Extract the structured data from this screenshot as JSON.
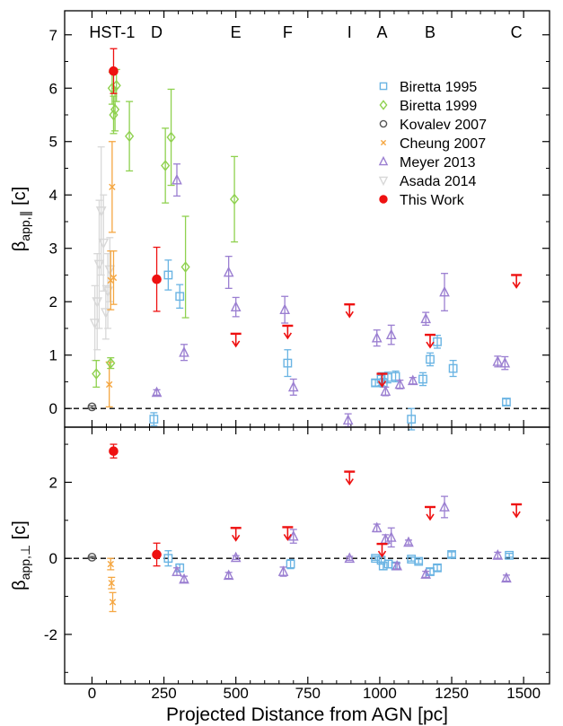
{
  "chart_data": {
    "type": "scatter",
    "xlabel": "Projected Distance from AGN [pc]",
    "xlim": [
      -95,
      1590
    ],
    "xticks": [
      0,
      250,
      500,
      750,
      1000,
      1250,
      1500
    ],
    "xtick_labels": [
      "0",
      "250",
      "500",
      "750",
      "1000",
      "1250",
      "1500"
    ],
    "knots": [
      {
        "label": "HST-1",
        "x": 70
      },
      {
        "label": "D",
        "x": 225
      },
      {
        "label": "E",
        "x": 500
      },
      {
        "label": "F",
        "x": 680
      },
      {
        "label": "I",
        "x": 895
      },
      {
        "label": "A",
        "x": 1008
      },
      {
        "label": "B",
        "x": 1175
      },
      {
        "label": "C",
        "x": 1475
      }
    ],
    "legend": {
      "placement": "top-right",
      "entries": [
        {
          "label": "Biretta 1995",
          "series": "Biretta 1995"
        },
        {
          "label": "Biretta 1999",
          "series": "Biretta 1999"
        },
        {
          "label": "Kovalev 2007",
          "series": "Kovalev 2007"
        },
        {
          "label": "Cheung 2007",
          "series": "Cheung 2007"
        },
        {
          "label": "Meyer 2013",
          "series": "Meyer 2013"
        },
        {
          "label": "Asada 2014",
          "series": "Asada 2014"
        },
        {
          "label": "This Work",
          "series": "This Work"
        }
      ]
    },
    "panels": [
      {
        "ylabel": "β",
        "ylabel_sub": "app,∥",
        "ylabel_unit": "[c]",
        "ylim": [
          -0.35,
          7.45
        ],
        "yticks": [
          0,
          1,
          2,
          3,
          4,
          5,
          6,
          7
        ],
        "ytick_labels": [
          "0",
          "1",
          "2",
          "3",
          "4",
          "5",
          "6",
          "7"
        ],
        "reference_line": 0,
        "series": [
          {
            "name": "Biretta 1995",
            "marker": "square",
            "color": "#6ab4e3",
            "points": [
              [
                215,
                -0.2,
                0.12
              ],
              [
                265,
                2.5,
                0.28
              ],
              [
                305,
                2.1,
                0.22
              ],
              [
                680,
                0.85,
                0.25
              ],
              [
                985,
                0.48,
                0.06
              ],
              [
                1005,
                0.55,
                0.12
              ],
              [
                1012,
                0.48,
                0.08
              ],
              [
                1028,
                0.58,
                0.1
              ],
              [
                1055,
                0.6,
                0.1
              ],
              [
                1110,
                -0.2,
                0.2
              ],
              [
                1150,
                0.55,
                0.12
              ],
              [
                1175,
                0.92,
                0.12
              ],
              [
                1200,
                1.25,
                0.12
              ],
              [
                1255,
                0.75,
                0.15
              ],
              [
                1440,
                0.12,
                0.06
              ]
            ]
          },
          {
            "name": "Biretta 1999",
            "marker": "diamond",
            "color": "#8fd14f",
            "points": [
              [
                15,
                0.65,
                0.25
              ],
              [
                65,
                0.85,
                0.1
              ],
              [
                70,
                6.0,
                0.3
              ],
              [
                75,
                5.5,
                0.35
              ],
              [
                80,
                5.6,
                0.4
              ],
              [
                85,
                6.05,
                0.3
              ],
              [
                130,
                5.1,
                0.65
              ],
              [
                255,
                4.55,
                0.7
              ],
              [
                275,
                5.08,
                0.9
              ],
              [
                325,
                2.65,
                0.95
              ],
              [
                495,
                3.92,
                0.8
              ]
            ]
          },
          {
            "name": "Kovalev 2007",
            "marker": "circle-open",
            "color": "#555555",
            "points": [
              [
                0,
                0.03,
                0.02
              ]
            ]
          },
          {
            "name": "Cheung 2007",
            "marker": "x",
            "color": "#f5a742",
            "points": [
              [
                60,
                0.45,
                0.42
              ],
              [
                65,
                2.4,
                0.55
              ],
              [
                70,
                4.15,
                0.85
              ],
              [
                75,
                2.45,
                0.5
              ]
            ]
          },
          {
            "name": "Meyer 2013",
            "marker": "triangle-up",
            "color": "#9b7fd1",
            "points": [
              [
                225,
                0.3,
                0.05
              ],
              [
                295,
                4.28,
                0.3
              ],
              [
                320,
                1.05,
                0.15
              ],
              [
                475,
                2.55,
                0.3
              ],
              [
                500,
                1.9,
                0.18
              ],
              [
                670,
                1.85,
                0.25
              ],
              [
                700,
                0.4,
                0.15
              ],
              [
                890,
                -0.22,
                0.12
              ],
              [
                990,
                1.32,
                0.15
              ],
              [
                1020,
                0.32,
                0.08
              ],
              [
                1040,
                1.38,
                0.18
              ],
              [
                1070,
                0.45,
                0.08
              ],
              [
                1115,
                0.52,
                0.06
              ],
              [
                1160,
                1.68,
                0.12
              ],
              [
                1225,
                2.18,
                0.35
              ],
              [
                1410,
                0.88,
                0.1
              ],
              [
                1435,
                0.85,
                0.12
              ]
            ]
          },
          {
            "name": "Asada 2014",
            "marker": "triangle-down",
            "color": "#d8d8d8",
            "points": [
              [
                10,
                1.6,
                0.7
              ],
              [
                18,
                2.0,
                0.9
              ],
              [
                25,
                2.7,
                1.2
              ],
              [
                32,
                3.7,
                1.2
              ],
              [
                40,
                3.1,
                0.9
              ],
              [
                48,
                1.8,
                0.5
              ],
              [
                55,
                2.2,
                0.7
              ],
              [
                62,
                2.6,
                0.6
              ]
            ]
          },
          {
            "name": "This Work",
            "marker": "circle-filled",
            "color": "#ee1111",
            "points": [
              [
                75,
                6.32,
                0.42
              ],
              [
                225,
                2.42,
                0.6
              ]
            ]
          },
          {
            "name": "This Work upper limits",
            "marker": "upper-limit",
            "color": "#ee1111",
            "points": [
              [
                500,
                1.4
              ],
              [
                680,
                1.55
              ],
              [
                895,
                1.95
              ],
              [
                1008,
                0.65
              ],
              [
                1175,
                1.38
              ],
              [
                1475,
                2.5
              ]
            ]
          }
        ]
      },
      {
        "ylabel": "β",
        "ylabel_sub": "app,⊥",
        "ylabel_unit": "[c]",
        "ylim": [
          -3.3,
          3.45
        ],
        "yticks": [
          -2,
          0,
          2
        ],
        "ytick_labels": [
          "-2",
          "0",
          "2"
        ],
        "reference_line": 0,
        "series": [
          {
            "name": "Biretta 1995",
            "marker": "square",
            "color": "#6ab4e3",
            "points": [
              [
                265,
                0.0,
                0.2
              ],
              [
                305,
                -0.25,
                0.1
              ],
              [
                690,
                -0.15,
                0.12
              ],
              [
                985,
                0.0,
                0.05
              ],
              [
                1005,
                -0.05,
                0.1
              ],
              [
                1012,
                -0.2,
                0.1
              ],
              [
                1030,
                -0.15,
                0.1
              ],
              [
                1055,
                -0.2,
                0.08
              ],
              [
                1110,
                -0.02,
                0.05
              ],
              [
                1135,
                -0.08,
                0.06
              ],
              [
                1175,
                -0.35,
                0.08
              ],
              [
                1200,
                -0.25,
                0.08
              ],
              [
                1250,
                0.1,
                0.07
              ],
              [
                1450,
                0.08,
                0.05
              ]
            ]
          },
          {
            "name": "Kovalev 2007",
            "marker": "circle-open",
            "color": "#555555",
            "points": [
              [
                0,
                0.03,
                0.02
              ]
            ]
          },
          {
            "name": "Cheung 2007",
            "marker": "x",
            "color": "#f5a742",
            "points": [
              [
                65,
                -0.15,
                0.15
              ],
              [
                68,
                -0.65,
                0.15
              ],
              [
                72,
                -1.15,
                0.25
              ]
            ]
          },
          {
            "name": "Meyer 2013",
            "marker": "triangle-up",
            "color": "#9b7fd1",
            "points": [
              [
                295,
                -0.35,
                0.1
              ],
              [
                320,
                -0.55,
                0.08
              ],
              [
                475,
                -0.45,
                0.08
              ],
              [
                500,
                0.02,
                0.05
              ],
              [
                665,
                -0.35,
                0.12
              ],
              [
                700,
                0.58,
                0.18
              ],
              [
                895,
                0.0,
                0.05
              ],
              [
                990,
                0.8,
                0.1
              ],
              [
                1020,
                0.5,
                0.12
              ],
              [
                1040,
                0.55,
                0.25
              ],
              [
                1060,
                -0.2,
                0.08
              ],
              [
                1100,
                0.42,
                0.06
              ],
              [
                1160,
                -0.42,
                0.08
              ],
              [
                1225,
                1.35,
                0.28
              ],
              [
                1410,
                0.08,
                0.08
              ],
              [
                1440,
                -0.52,
                0.08
              ]
            ]
          },
          {
            "name": "This Work",
            "marker": "circle-filled",
            "color": "#ee1111",
            "points": [
              [
                75,
                2.82,
                0.18
              ],
              [
                225,
                0.1,
                0.3
              ]
            ]
          },
          {
            "name": "This Work upper limits",
            "marker": "upper-limit",
            "color": "#ee1111",
            "points": [
              [
                500,
                0.8
              ],
              [
                680,
                0.82
              ],
              [
                895,
                2.28
              ],
              [
                1008,
                0.38
              ],
              [
                1175,
                1.35
              ],
              [
                1475,
                1.42
              ]
            ]
          }
        ]
      }
    ]
  }
}
